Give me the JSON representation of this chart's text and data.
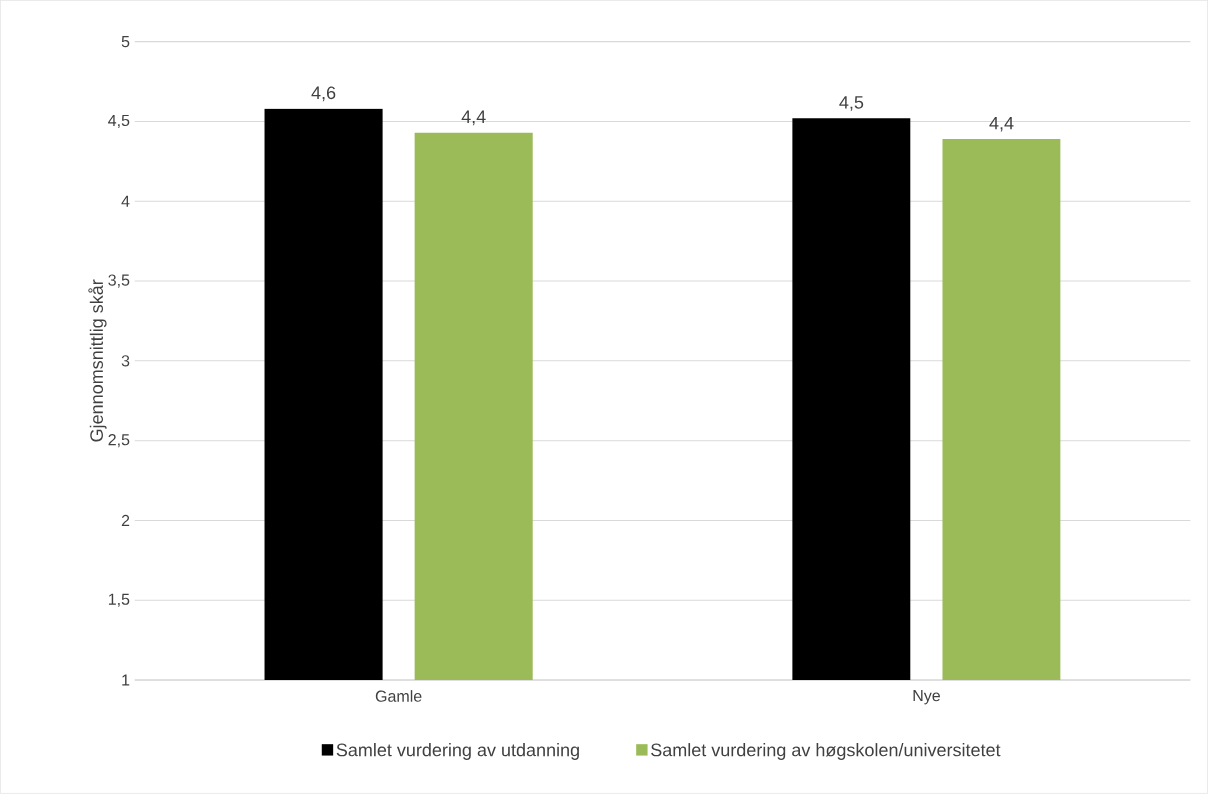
{
  "chart_data": {
    "type": "bar",
    "ylabel": "Gjennomsnittlig skår",
    "categories": [
      "Gamle",
      "Nye"
    ],
    "series": [
      {
        "name": "Samlet vurdering av utdanning",
        "color": "#000000",
        "values": [
          4.58,
          4.52
        ],
        "value_labels": [
          "4,6",
          "4,5"
        ]
      },
      {
        "name": "Samlet vurdering av høgskolen/universitetet",
        "color": "#9bbb59",
        "values": [
          4.43,
          4.39
        ],
        "value_labels": [
          "4,4",
          "4,4"
        ]
      }
    ],
    "ylim": [
      1,
      5
    ],
    "yticks": [
      1,
      {
        "value": 1.5,
        "label": "1,5"
      },
      2,
      {
        "value": 2.5,
        "label": "2,5"
      },
      3,
      {
        "value": 3.5,
        "label": "3,5"
      },
      4,
      {
        "value": 4.5,
        "label": "4,5"
      },
      5
    ],
    "grid": "y",
    "legend": "bottom"
  }
}
